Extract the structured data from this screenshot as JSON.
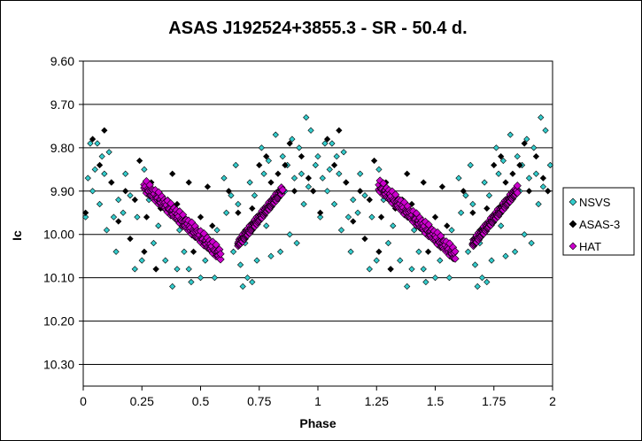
{
  "chart_data": {
    "type": "scatter",
    "title": "ASAS J192524+3855.3  - SR - 50.4 d.",
    "xlabel": "Phase",
    "ylabel": "Ic",
    "xlim": [
      0,
      2
    ],
    "ylim": [
      10.35,
      9.6
    ],
    "y_inverted": true,
    "grid": "horizontal",
    "legend_position": "right",
    "x_ticks": [
      "0",
      "0.25",
      "0.5",
      "0.75",
      "1",
      "1.25",
      "1.5",
      "1.75",
      "2"
    ],
    "y_ticks": [
      "9.60",
      "9.70",
      "9.80",
      "9.90",
      "10.00",
      "10.10",
      "10.20",
      "10.30"
    ],
    "series": [
      {
        "name": "NSVS",
        "color": "#33cccc",
        "marker": "diamond",
        "points": [
          [
            0.01,
            9.96
          ],
          [
            0.02,
            9.87
          ],
          [
            0.03,
            9.79
          ],
          [
            0.04,
            9.9
          ],
          [
            0.05,
            9.85
          ],
          [
            0.06,
            9.79
          ],
          [
            0.07,
            9.93
          ],
          [
            0.08,
            9.82
          ],
          [
            0.09,
            9.86
          ],
          [
            0.1,
            9.99
          ],
          [
            0.11,
            9.81
          ],
          [
            0.12,
            9.88
          ],
          [
            0.13,
            9.96
          ],
          [
            0.14,
            10.04
          ],
          [
            0.15,
            9.92
          ],
          [
            0.17,
            9.95
          ],
          [
            0.18,
            9.86
          ],
          [
            0.2,
            9.91
          ],
          [
            0.22,
            10.08
          ],
          [
            0.23,
            9.96
          ],
          [
            0.25,
            10.06
          ],
          [
            0.26,
            9.85
          ],
          [
            0.28,
            9.92
          ],
          [
            0.3,
            10.02
          ],
          [
            0.31,
            10.08
          ],
          [
            0.32,
            9.98
          ],
          [
            0.35,
            10.06
          ],
          [
            0.36,
            9.94
          ],
          [
            0.38,
            10.12
          ],
          [
            0.4,
            10.08
          ],
          [
            0.41,
            9.99
          ],
          [
            0.43,
            10.04
          ],
          [
            0.45,
            10.08
          ],
          [
            0.46,
            10.11
          ],
          [
            0.48,
            9.99
          ],
          [
            0.5,
            10.1
          ],
          [
            0.52,
            10.06
          ],
          [
            0.54,
            10.03
          ],
          [
            0.56,
            10.1
          ],
          [
            0.57,
            9.99
          ],
          [
            0.58,
            10.04
          ],
          [
            0.6,
            9.87
          ],
          [
            0.61,
            9.95
          ],
          [
            0.63,
            9.91
          ],
          [
            0.64,
            10.04
          ],
          [
            0.65,
            9.84
          ],
          [
            0.66,
            9.93
          ],
          [
            0.67,
            10.07
          ],
          [
            0.68,
            10.12
          ],
          [
            0.69,
            10.02
          ],
          [
            0.7,
            10.1
          ],
          [
            0.71,
            9.88
          ],
          [
            0.72,
            10.11
          ],
          [
            0.73,
            9.91
          ],
          [
            0.74,
            10.06
          ],
          [
            0.75,
            9.96
          ],
          [
            0.76,
            9.8
          ],
          [
            0.77,
            9.86
          ],
          [
            0.78,
            9.98
          ],
          [
            0.79,
            9.83
          ],
          [
            0.8,
            10.05
          ],
          [
            0.81,
            9.92
          ],
          [
            0.82,
            9.77
          ],
          [
            0.84,
            10.04
          ],
          [
            0.85,
            9.82
          ],
          [
            0.86,
            9.9
          ],
          [
            0.87,
            9.84
          ],
          [
            0.88,
            10.0
          ],
          [
            0.89,
            9.78
          ],
          [
            0.9,
            9.87
          ],
          [
            0.91,
            10.02
          ],
          [
            0.92,
            9.8
          ],
          [
            0.93,
            9.86
          ],
          [
            0.94,
            9.93
          ],
          [
            0.95,
            9.73
          ],
          [
            0.96,
            9.89
          ],
          [
            0.97,
            9.76
          ],
          [
            0.98,
            9.9
          ],
          [
            0.99,
            9.84
          ],
          [
            1.0,
            9.82
          ],
          [
            1.01,
            9.96
          ],
          [
            1.02,
            9.87
          ],
          [
            1.03,
            9.79
          ],
          [
            1.04,
            9.9
          ],
          [
            1.05,
            9.85
          ],
          [
            1.06,
            9.79
          ],
          [
            1.07,
            9.93
          ],
          [
            1.08,
            9.82
          ],
          [
            1.09,
            9.86
          ],
          [
            1.1,
            9.99
          ],
          [
            1.11,
            9.81
          ],
          [
            1.12,
            9.88
          ],
          [
            1.13,
            9.96
          ],
          [
            1.14,
            10.04
          ],
          [
            1.15,
            9.92
          ],
          [
            1.17,
            9.95
          ],
          [
            1.18,
            9.86
          ],
          [
            1.2,
            9.91
          ],
          [
            1.22,
            10.08
          ],
          [
            1.23,
            9.96
          ],
          [
            1.25,
            10.06
          ],
          [
            1.26,
            9.85
          ],
          [
            1.28,
            9.92
          ],
          [
            1.3,
            10.02
          ],
          [
            1.31,
            10.08
          ],
          [
            1.32,
            9.98
          ],
          [
            1.35,
            10.06
          ],
          [
            1.36,
            9.94
          ],
          [
            1.38,
            10.12
          ],
          [
            1.4,
            10.08
          ],
          [
            1.41,
            9.99
          ],
          [
            1.43,
            10.04
          ],
          [
            1.45,
            10.08
          ],
          [
            1.46,
            10.11
          ],
          [
            1.48,
            9.99
          ],
          [
            1.5,
            10.1
          ],
          [
            1.52,
            10.06
          ],
          [
            1.54,
            10.03
          ],
          [
            1.56,
            10.1
          ],
          [
            1.57,
            9.99
          ],
          [
            1.58,
            10.04
          ],
          [
            1.6,
            9.87
          ],
          [
            1.61,
            9.95
          ],
          [
            1.63,
            9.91
          ],
          [
            1.64,
            10.04
          ],
          [
            1.65,
            9.84
          ],
          [
            1.66,
            9.93
          ],
          [
            1.67,
            10.07
          ],
          [
            1.68,
            10.12
          ],
          [
            1.69,
            10.02
          ],
          [
            1.7,
            10.1
          ],
          [
            1.71,
            9.88
          ],
          [
            1.72,
            10.11
          ],
          [
            1.73,
            9.91
          ],
          [
            1.74,
            10.06
          ],
          [
            1.75,
            9.96
          ],
          [
            1.76,
            9.8
          ],
          [
            1.77,
            9.86
          ],
          [
            1.78,
            9.98
          ],
          [
            1.79,
            9.83
          ],
          [
            1.8,
            10.05
          ],
          [
            1.81,
            9.92
          ],
          [
            1.82,
            9.77
          ],
          [
            1.84,
            10.04
          ],
          [
            1.85,
            9.82
          ],
          [
            1.86,
            9.9
          ],
          [
            1.87,
            9.84
          ],
          [
            1.88,
            10.0
          ],
          [
            1.89,
            9.78
          ],
          [
            1.9,
            9.87
          ],
          [
            1.91,
            10.02
          ],
          [
            1.92,
            9.8
          ],
          [
            1.93,
            9.86
          ],
          [
            1.94,
            9.93
          ],
          [
            1.95,
            9.73
          ],
          [
            1.96,
            9.89
          ],
          [
            1.97,
            9.76
          ],
          [
            1.98,
            9.9
          ],
          [
            1.99,
            9.84
          ]
        ]
      },
      {
        "name": "ASAS-3",
        "color": "#000000",
        "marker": "diamond",
        "points": [
          [
            0.01,
            9.95
          ],
          [
            0.04,
            9.78
          ],
          [
            0.07,
            9.84
          ],
          [
            0.09,
            9.76
          ],
          [
            0.12,
            9.88
          ],
          [
            0.15,
            9.97
          ],
          [
            0.18,
            9.9
          ],
          [
            0.2,
            10.01
          ],
          [
            0.22,
            9.92
          ],
          [
            0.24,
            9.83
          ],
          [
            0.26,
            10.04
          ],
          [
            0.27,
            9.96
          ],
          [
            0.29,
            9.88
          ],
          [
            0.31,
            10.08
          ],
          [
            0.33,
            9.94
          ],
          [
            0.36,
            9.92
          ],
          [
            0.38,
            9.86
          ],
          [
            0.4,
            9.93
          ],
          [
            0.42,
            9.98
          ],
          [
            0.45,
            9.88
          ],
          [
            0.47,
            10.04
          ],
          [
            0.5,
            9.96
          ],
          [
            0.53,
            9.89
          ],
          [
            0.55,
            9.98
          ],
          [
            0.57,
            10.04
          ],
          [
            0.62,
            9.9
          ],
          [
            0.66,
            9.95
          ],
          [
            0.69,
            9.99
          ],
          [
            0.72,
            9.94
          ],
          [
            0.75,
            9.84
          ],
          [
            0.78,
            9.82
          ],
          [
            0.8,
            9.88
          ],
          [
            0.83,
            9.86
          ],
          [
            0.86,
            9.84
          ],
          [
            0.88,
            9.79
          ],
          [
            0.9,
            9.9
          ],
          [
            0.93,
            9.82
          ],
          [
            0.96,
            9.87
          ],
          [
            0.98,
            9.9
          ],
          [
            1.01,
            9.95
          ],
          [
            1.04,
            9.78
          ],
          [
            1.07,
            9.84
          ],
          [
            1.09,
            9.76
          ],
          [
            1.12,
            9.88
          ],
          [
            1.15,
            9.97
          ],
          [
            1.18,
            9.9
          ],
          [
            1.2,
            10.01
          ],
          [
            1.22,
            9.92
          ],
          [
            1.24,
            9.83
          ],
          [
            1.26,
            10.04
          ],
          [
            1.27,
            9.96
          ],
          [
            1.29,
            9.88
          ],
          [
            1.31,
            10.08
          ],
          [
            1.33,
            9.94
          ],
          [
            1.36,
            9.92
          ],
          [
            1.38,
            9.86
          ],
          [
            1.4,
            9.93
          ],
          [
            1.42,
            9.98
          ],
          [
            1.45,
            9.88
          ],
          [
            1.47,
            10.04
          ],
          [
            1.5,
            9.96
          ],
          [
            1.53,
            9.89
          ],
          [
            1.55,
            9.98
          ],
          [
            1.57,
            10.04
          ],
          [
            1.62,
            9.9
          ],
          [
            1.66,
            9.95
          ],
          [
            1.69,
            9.99
          ],
          [
            1.72,
            9.94
          ],
          [
            1.75,
            9.84
          ],
          [
            1.78,
            9.82
          ],
          [
            1.8,
            9.88
          ],
          [
            1.83,
            9.86
          ],
          [
            1.86,
            9.84
          ],
          [
            1.88,
            9.79
          ],
          [
            1.9,
            9.9
          ],
          [
            1.93,
            9.82
          ],
          [
            1.96,
            9.87
          ],
          [
            1.98,
            9.9
          ]
        ]
      },
      {
        "name": "HAT",
        "color": "#cc00cc",
        "marker": "diamond",
        "segments": [
          {
            "x_start": 0.26,
            "x_end": 0.585,
            "y_start": 9.885,
            "y_end": 10.045,
            "scatter": 0.025
          },
          {
            "x_start": 0.66,
            "x_end": 0.85,
            "y_start": 10.02,
            "y_end": 9.895,
            "scatter": 0.015
          },
          {
            "x_start": 1.26,
            "x_end": 1.585,
            "y_start": 9.885,
            "y_end": 10.045,
            "scatter": 0.025
          },
          {
            "x_start": 1.66,
            "x_end": 1.85,
            "y_start": 10.02,
            "y_end": 9.895,
            "scatter": 0.015
          }
        ]
      }
    ]
  }
}
